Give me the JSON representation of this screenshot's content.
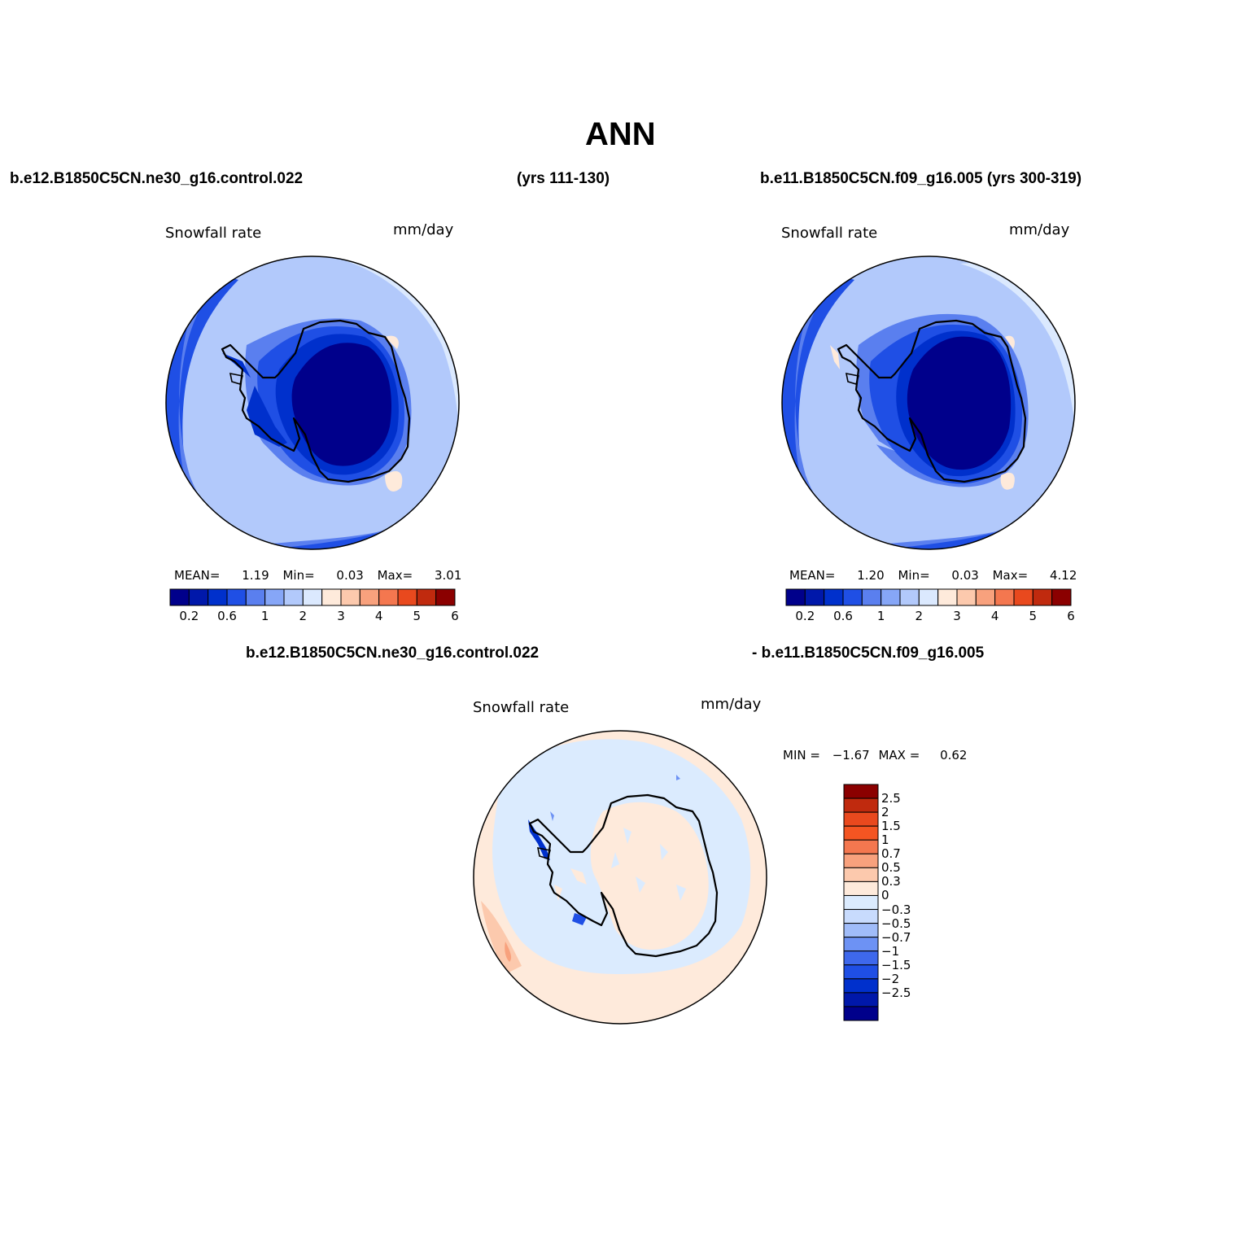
{
  "header": {
    "title": "ANN"
  },
  "case_titles": {
    "left": "b.e12.B1850C5CN.ne30_g16.control.022",
    "left_years": "(yrs 111-130)",
    "right": "b.e11.B1850C5CN.f09_g16.005 (yrs 300-319)",
    "diff_left": "b.e12.B1850C5CN.ne30_g16.control.022",
    "diff_right": "- b.e11.B1850C5CN.f09_g16.005"
  },
  "panel1": {
    "variable": "Snowfall rate",
    "units": "mm/day",
    "stats": {
      "mean_label": "MEAN=",
      "mean": "1.19",
      "min_label": "Min=",
      "min": "0.03",
      "max_label": "Max=",
      "max": "3.01"
    }
  },
  "panel2": {
    "variable": "Snowfall rate",
    "units": "mm/day",
    "stats": {
      "mean_label": "MEAN=",
      "mean": "1.20",
      "min_label": "Min=",
      "min": "0.03",
      "max_label": "Max=",
      "max": "4.12"
    }
  },
  "panel3": {
    "variable": "Snowfall rate",
    "units": "mm/day",
    "stats": {
      "min_label": "MIN =",
      "min": "−1.67",
      "max_label": "MAX =",
      "max": "0.62"
    }
  },
  "colorbar_main": {
    "colors": [
      "#00008b",
      "#0018aa",
      "#0030cc",
      "#1f4fe5",
      "#5a7fef",
      "#86a6f7",
      "#b2c9fb",
      "#dbe9fe",
      "#feeadb",
      "#fcc9ad",
      "#f8a17d",
      "#f4774f",
      "#e9491e",
      "#c02a0e",
      "#8b0000"
    ],
    "ticks": [
      "0.2",
      "0.6",
      "1",
      "2",
      "3",
      "4",
      "5",
      "6"
    ]
  },
  "colorbar_diff": {
    "colors": [
      "#00008b",
      "#0018aa",
      "#0030cc",
      "#1f4fe5",
      "#3e68ec",
      "#6d92f4",
      "#a0bcf9",
      "#c8dbfd",
      "#dbebfe",
      "#feeadb",
      "#fcc9ad",
      "#f8a17d",
      "#f4774f",
      "#f45522",
      "#e9491e",
      "#c02a0e",
      "#8b0000"
    ],
    "ticks": [
      "2.5",
      "2",
      "1.5",
      "1",
      "0.7",
      "0.5",
      "0.3",
      "0",
      "−0.3",
      "−0.5",
      "−0.7",
      "−1",
      "−1.5",
      "−2",
      "−2.5"
    ]
  }
}
